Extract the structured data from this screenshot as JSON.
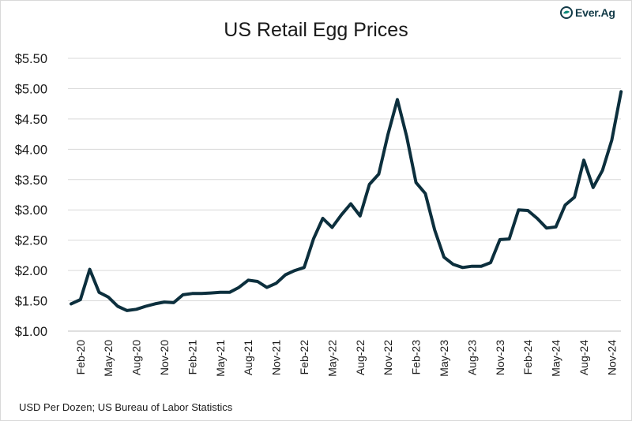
{
  "logo": {
    "text": "Ever.Ag",
    "icon": "everag-leaf-icon",
    "color": "#0f8a7a"
  },
  "footnote": "USD Per Dozen; US Bureau of Labor Statistics",
  "chart_data": {
    "type": "line",
    "title": "US Retail Egg Prices",
    "xlabel": "",
    "ylabel": "",
    "ylim": [
      1.0,
      5.5
    ],
    "yticks": [
      "$1.00",
      "$1.50",
      "$2.00",
      "$2.50",
      "$3.00",
      "$3.50",
      "$4.00",
      "$4.50",
      "$5.00",
      "$5.50"
    ],
    "xtick_labels": [
      "Feb-20",
      "May-20",
      "Aug-20",
      "Nov-20",
      "Feb-21",
      "May-21",
      "Aug-21",
      "Nov-21",
      "Feb-22",
      "May-22",
      "Aug-22",
      "Nov-22",
      "Feb-23",
      "May-23",
      "Aug-23",
      "Nov-23",
      "Feb-24",
      "May-24",
      "Aug-24",
      "Nov-24"
    ],
    "grid": true,
    "line_color": "#0c2f3d",
    "series": [
      {
        "x": [
          "Jan-20",
          "Feb-20",
          "Mar-20",
          "Apr-20",
          "May-20",
          "Jun-20",
          "Jul-20",
          "Aug-20",
          "Sep-20",
          "Oct-20",
          "Nov-20",
          "Dec-20",
          "Jan-21",
          "Feb-21",
          "Mar-21",
          "Apr-21",
          "May-21",
          "Jun-21",
          "Jul-21",
          "Aug-21",
          "Sep-21",
          "Oct-21",
          "Nov-21",
          "Dec-21",
          "Jan-22",
          "Feb-22",
          "Mar-22",
          "Apr-22",
          "May-22",
          "Jun-22",
          "Jul-22",
          "Aug-22",
          "Sep-22",
          "Oct-22",
          "Nov-22",
          "Dec-22",
          "Jan-23",
          "Feb-23",
          "Mar-23",
          "Apr-23",
          "May-23",
          "Jun-23",
          "Jul-23",
          "Aug-23",
          "Sep-23",
          "Oct-23",
          "Nov-23",
          "Dec-23",
          "Jan-24",
          "Feb-24",
          "Mar-24",
          "Apr-24",
          "May-24",
          "Jun-24",
          "Jul-24",
          "Aug-24",
          "Sep-24",
          "Oct-24",
          "Nov-24",
          "Dec-24"
        ],
        "values": [
          1.45,
          1.52,
          2.02,
          1.64,
          1.56,
          1.41,
          1.34,
          1.36,
          1.41,
          1.45,
          1.48,
          1.47,
          1.6,
          1.62,
          1.62,
          1.63,
          1.64,
          1.64,
          1.72,
          1.84,
          1.82,
          1.72,
          1.79,
          1.93,
          2.0,
          2.05,
          2.52,
          2.86,
          2.71,
          2.92,
          3.1,
          2.9,
          3.42,
          3.59,
          4.25,
          4.82,
          4.21,
          3.45,
          3.27,
          2.67,
          2.22,
          2.1,
          2.05,
          2.07,
          2.07,
          2.13,
          2.51,
          2.52,
          3.0,
          2.99,
          2.86,
          2.7,
          2.72,
          3.08,
          3.21,
          3.82,
          3.37,
          3.65,
          4.15,
          4.95
        ]
      }
    ]
  }
}
